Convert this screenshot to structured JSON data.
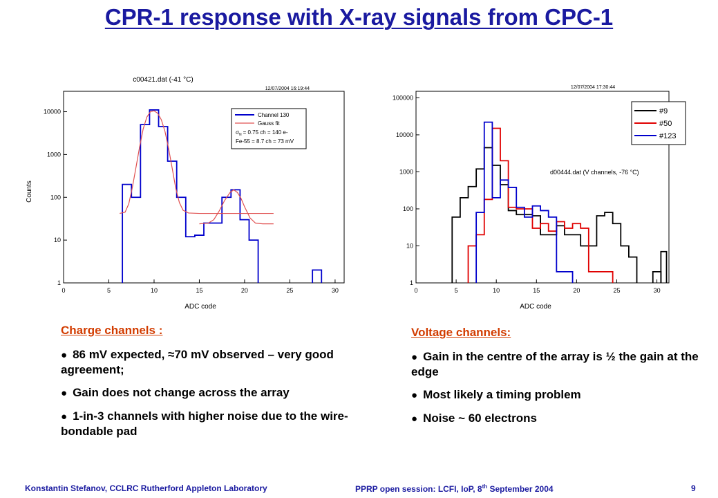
{
  "title": "CPR-1 response with X-ray signals from CPC-1",
  "chart_data": [
    {
      "type": "line",
      "title": "c00421.dat (-41 °C)",
      "timestamp": "12/07/2004 16:19:44",
      "xlabel": "ADC code",
      "ylabel": "Counts",
      "xlim": [
        0,
        31
      ],
      "ylim": [
        1,
        30000
      ],
      "y_scale": "log",
      "x_ticks": [
        0,
        5,
        10,
        15,
        20,
        25,
        30
      ],
      "y_ticks": [
        1,
        10,
        100,
        1000,
        10000
      ],
      "y_tick_labels": [
        "1",
        "10",
        "100",
        "1000",
        "10000"
      ],
      "legend": {
        "position": "top-right",
        "entries": [
          {
            "label": "Channel 130",
            "color": "#0000cc"
          },
          {
            "label": "Gauss fit",
            "color": "#e05050"
          }
        ],
        "note1": "= 0.75 ch = 140 e-",
        "note1_symbol": "σ",
        "note1_sub": "N",
        "note2": "Fe-55 = 8.7 ch = 73 mV"
      },
      "series": [
        {
          "name": "Channel 130",
          "color": "#0000cc",
          "step": true,
          "edges": [
            6.5,
            7.5,
            8.5,
            9.5,
            10.5,
            11.5,
            12.5,
            13.5,
            14.5,
            15.5,
            16.5,
            17.5,
            18.5,
            19.5,
            20.5,
            21.5
          ],
          "values": [
            200,
            100,
            5000,
            11000,
            4500,
            700,
            100,
            12,
            13,
            25,
            25,
            100,
            150,
            30,
            10
          ]
        },
        {
          "name": "Gauss fit (peak 1)",
          "color": "#e05050",
          "x": [
            6.2,
            6.8,
            7.2,
            7.6,
            8.0,
            8.4,
            8.8,
            9.2,
            9.6,
            10.0,
            10.4,
            10.8,
            11.2,
            11.6,
            12.0,
            12.4,
            12.8,
            13.2,
            13.8,
            15,
            17,
            19,
            21,
            23.2
          ],
          "values": [
            42,
            45,
            70,
            170,
            500,
            1500,
            4000,
            7500,
            10000,
            10500,
            9200,
            6500,
            3500,
            1400,
            480,
            160,
            75,
            50,
            43,
            42,
            42,
            42,
            42,
            42
          ]
        },
        {
          "name": "Gauss fit (peak 2)",
          "color": "#e05050",
          "x": [
            15.0,
            16.0,
            16.6,
            17.2,
            17.8,
            18.4,
            18.8,
            19.2,
            19.6,
            20.0,
            20.6,
            21.2,
            22,
            23.2
          ],
          "values": [
            24,
            25,
            30,
            48,
            85,
            130,
            150,
            130,
            95,
            60,
            33,
            25,
            24,
            24
          ]
        },
        {
          "name": "Channel 130 (tail)",
          "color": "#0000cc",
          "step": true,
          "edges": [
            27.5,
            28.5
          ],
          "values": [
            2
          ]
        }
      ]
    },
    {
      "type": "line",
      "title": "d00444.dat (V channels, -76 °C)",
      "timestamp": "12/07/2004 17:30:44",
      "xlabel": "ADC code",
      "ylabel": "",
      "xlim": [
        0,
        31.5
      ],
      "ylim": [
        1,
        150000
      ],
      "y_scale": "log",
      "x_ticks": [
        0,
        5,
        10,
        15,
        20,
        25,
        30
      ],
      "y_ticks": [
        1,
        10,
        100,
        1000,
        10000,
        100000
      ],
      "y_tick_labels": [
        "1",
        "10",
        "100",
        "1000",
        "10000",
        "100000"
      ],
      "legend": {
        "position": "top-right",
        "entries": [
          {
            "label": "#9",
            "color": "#000000"
          },
          {
            "label": "#50",
            "color": "#e00000"
          },
          {
            "label": "#123",
            "color": "#0000cc"
          }
        ]
      },
      "series": [
        {
          "name": "#9",
          "color": "#000000",
          "step": true,
          "edges": [
            4.5,
            5.5,
            6.5,
            7.5,
            8.5,
            9.5,
            10.5,
            11.5,
            12.5,
            13.5,
            14.5,
            15.5,
            16.5,
            17.5,
            18.5,
            19.5,
            20.5,
            21.5,
            22.5,
            23.5,
            24.5,
            25.5,
            26.5,
            27.5
          ],
          "values": [
            60,
            200,
            400,
            1200,
            4500,
            1500,
            450,
            90,
            70,
            70,
            65,
            20,
            20,
            35,
            20,
            20,
            10,
            10,
            65,
            80,
            40,
            10,
            5
          ],
          "extra_steps": [
            {
              "edges": [
                29.5,
                30.5
              ],
              "values": [
                2
              ]
            },
            {
              "edges": [
                30.5,
                31.2
              ],
              "values": [
                7
              ]
            }
          ]
        },
        {
          "name": "#50",
          "color": "#e00000",
          "step": true,
          "edges": [
            6.5,
            7.5,
            8.5,
            9.5,
            10.5,
            11.5,
            12.5,
            13.5,
            14.5,
            15.5,
            16.5,
            17.5,
            18.5,
            19.5,
            20.5,
            21.5,
            22.5,
            23.5,
            24.5
          ],
          "values": [
            10,
            20,
            180,
            15000,
            2000,
            110,
            100,
            100,
            30,
            40,
            25,
            45,
            30,
            40,
            30,
            2,
            2,
            2
          ]
        },
        {
          "name": "#123",
          "color": "#0000cc",
          "step": true,
          "edges": [
            7.5,
            8.5,
            9.5,
            10.5,
            11.5,
            12.5,
            13.5,
            14.5,
            15.5,
            16.5,
            17.5,
            18.5,
            19.5
          ],
          "values": [
            80,
            22000,
            200,
            600,
            380,
            110,
            60,
            120,
            90,
            60,
            2,
            2
          ]
        }
      ]
    }
  ],
  "left_notes": {
    "heading": "Charge channels :",
    "items": [
      "86 mV expected, ≈70 mV observed – very good agreement;",
      "Gain does not change across the array",
      "1-in-3 channels with higher noise due to the wire-bondable pad"
    ]
  },
  "right_notes": {
    "heading": "Voltage channels:",
    "items": [
      "Gain in the centre of the array is ½  the gain at the edge",
      "Most likely a timing problem",
      "Noise ~ 60 electrons"
    ]
  },
  "footer": {
    "author": "Konstantin Stefanov, CCLRC Rutherford Appleton Laboratory",
    "session_prefix": "PPRP open session: LCFI, IoP, 8",
    "session_sup": "th",
    "session_suffix": " September 2004",
    "page": "9"
  }
}
